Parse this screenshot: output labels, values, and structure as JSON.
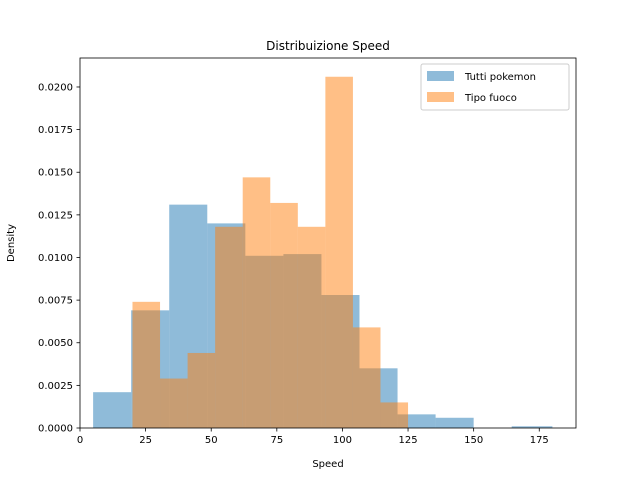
{
  "chart_data": {
    "type": "histogram",
    "title": "Distribuizione Speed",
    "xlabel": "Speed",
    "ylabel": "Density",
    "xlim": [
      0,
      189
    ],
    "ylim": [
      0,
      0.0217
    ],
    "xticks": [
      0,
      25,
      50,
      75,
      100,
      125,
      150,
      175
    ],
    "yticks": [
      0.0,
      0.0025,
      0.005,
      0.0075,
      0.01,
      0.0125,
      0.015,
      0.0175,
      0.02
    ],
    "ytick_labels": [
      "0.0000",
      "0.0025",
      "0.0050",
      "0.0075",
      "0.0100",
      "0.0125",
      "0.0150",
      "0.0175",
      "0.0200"
    ],
    "xtick_labels": [
      "0",
      "25",
      "50",
      "75",
      "100",
      "125",
      "150",
      "175"
    ],
    "legend_position": "top-right",
    "series": [
      {
        "name": "Tutti pokemon",
        "color": "#1f77b4",
        "alpha": 0.5,
        "bins": [
          {
            "x0": 5,
            "x1": 19.5,
            "density": 0.0021
          },
          {
            "x0": 19.5,
            "x1": 34,
            "density": 0.0069
          },
          {
            "x0": 34,
            "x1": 48.5,
            "density": 0.0131
          },
          {
            "x0": 48.5,
            "x1": 63,
            "density": 0.012
          },
          {
            "x0": 63,
            "x1": 77.5,
            "density": 0.0101
          },
          {
            "x0": 77.5,
            "x1": 92,
            "density": 0.0102
          },
          {
            "x0": 92,
            "x1": 106.5,
            "density": 0.0078
          },
          {
            "x0": 106.5,
            "x1": 121,
            "density": 0.0035
          },
          {
            "x0": 121,
            "x1": 135.5,
            "density": 0.0008
          },
          {
            "x0": 135.5,
            "x1": 150,
            "density": 0.0006
          },
          {
            "x0": 150,
            "x1": 164.5,
            "density": 0.0
          },
          {
            "x0": 164.5,
            "x1": 180,
            "density": 0.0001
          }
        ]
      },
      {
        "name": "Tipo fuoco",
        "color": "#ff7f0e",
        "alpha": 0.5,
        "bins": [
          {
            "x0": 20,
            "x1": 30.5,
            "density": 0.0074
          },
          {
            "x0": 30.5,
            "x1": 41,
            "density": 0.0029
          },
          {
            "x0": 41,
            "x1": 51.5,
            "density": 0.0044
          },
          {
            "x0": 51.5,
            "x1": 62,
            "density": 0.0118
          },
          {
            "x0": 62,
            "x1": 72.5,
            "density": 0.0147
          },
          {
            "x0": 72.5,
            "x1": 83,
            "density": 0.0132
          },
          {
            "x0": 83,
            "x1": 93.5,
            "density": 0.0118
          },
          {
            "x0": 93.5,
            "x1": 104,
            "density": 0.0206
          },
          {
            "x0": 104,
            "x1": 114.5,
            "density": 0.0059
          },
          {
            "x0": 114.5,
            "x1": 125,
            "density": 0.0015
          }
        ]
      }
    ]
  }
}
